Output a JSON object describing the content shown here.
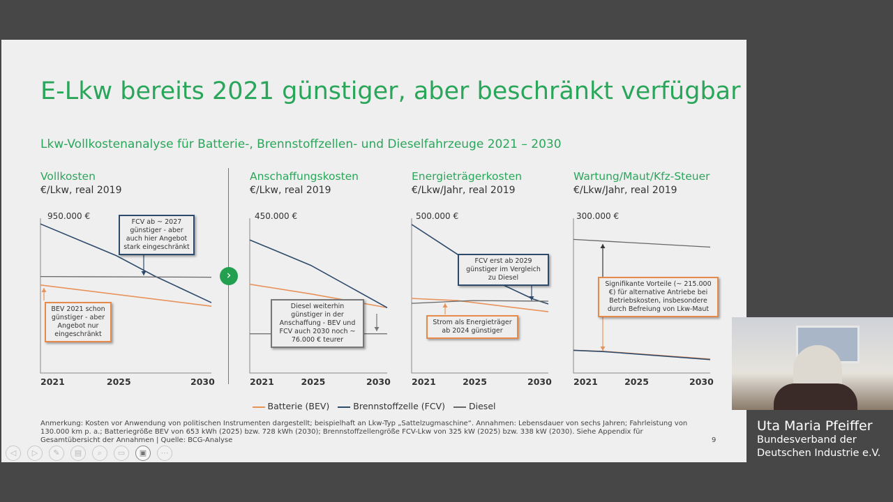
{
  "slide": {
    "title": "E-Lkw bereits 2021 günstiger, aber beschränkt verfügbar",
    "subtitle": "Lkw-Vollkostenanalyse für Batterie-, Brennstoffzellen- und Dieselfahrzeuge 2021 – 2030",
    "page_number": "9",
    "legend": [
      "Batterie (BEV)",
      "Brennstoffzelle (FCV)",
      "Diesel"
    ],
    "footnote": "Anmerkung: Kosten vor Anwendung von politischen Instrumenten dargestellt; beispielhaft an Lkw-Typ „Sattelzugmaschine“. Annahmen: Lebensdauer von sechs Jahren; Fahrleistung von 130.000 km p. a.; Batteriegröße BEV von 653 kWh (2025) bzw. 728 kWh (2030); Brennstoffzellengröße FCV-Lkw von 325 kW (2025) bzw. 338 kW (2030). Siehe Appendix für Gesamtübersicht der Annahmen  |  Quelle: BCG-Analyse",
    "notes": {
      "p1_fcv": "FCV ab ~ 2027 günstiger - aber auch hier Angebot stark eingeschränkt",
      "p1_bev": "BEV 2021 schon günstiger - aber Angebot nur eingeschränkt",
      "p2": "Diesel weiterhin günstiger in der Anschaffung - BEV und FCV auch 2030 noch ~ 76.000 € teurer",
      "p3_fcv": "FCV erst ab 2029 günstiger im Vergleich zu Diesel",
      "p3_bev": "Strom als Energieträger ab 2024 günstiger",
      "p4": "Signifikante Vorteile (~ 215.000 €) für alternative Antriebe bei Betriebskosten, insbesondere durch Befreiung von Lkw-Maut"
    }
  },
  "speaker": {
    "name": "Uta Maria Pfeiffer",
    "org_line1": "Bundesverband der",
    "org_line2": "Deutschen Industrie e.V."
  },
  "colors": {
    "bev": "#e8925a",
    "fcv": "#2e4a6b",
    "diesel": "#666666",
    "accent": "#2aa65a"
  },
  "chart_data": [
    {
      "type": "line",
      "title": "Vollkosten",
      "ylabel": "€/Lkw, real 2019",
      "ymax_label": "950.000 €",
      "ylim": [
        0,
        950000
      ],
      "x_ticks": [
        "2021",
        "2025",
        "2030"
      ],
      "series": [
        {
          "name": "Batterie (BEV)",
          "x": [
            2021,
            2030
          ],
          "values": [
            540000,
            410000
          ]
        },
        {
          "name": "Brennstoffzelle (FCV)",
          "x": [
            2021,
            2025,
            2027,
            2030
          ],
          "values": [
            915000,
            720000,
            596000,
            432000
          ]
        },
        {
          "name": "Diesel",
          "x": [
            2021,
            2030
          ],
          "values": [
            592000,
            588000
          ]
        }
      ]
    },
    {
      "type": "line",
      "title": "Anschaffungskosten",
      "ylabel": "€/Lkw, real 2019",
      "ymax_label": "450.000 €",
      "ylim": [
        0,
        450000
      ],
      "x_ticks": [
        "2021",
        "2025",
        "2030"
      ],
      "series": [
        {
          "name": "Batterie (BEV)",
          "x": [
            2021,
            2025,
            2030
          ],
          "values": [
            258000,
            230000,
            190000
          ]
        },
        {
          "name": "Brennstoffzelle (FCV)",
          "x": [
            2021,
            2025,
            2030
          ],
          "values": [
            387000,
            313000,
            190000
          ]
        },
        {
          "name": "Diesel",
          "x": [
            2021,
            2030
          ],
          "values": [
            114000,
            114000
          ]
        }
      ]
    },
    {
      "type": "line",
      "title": "Energieträgerkosten",
      "ylabel": "€/Lkw/Jahr, real 2019",
      "ymax_label": "500.000 €",
      "ylim": [
        0,
        500000
      ],
      "x_ticks": [
        "2021",
        "2025",
        "2030"
      ],
      "series": [
        {
          "name": "Batterie (BEV)",
          "x": [
            2021,
            2024,
            2030
          ],
          "values": [
            241000,
            234000,
            198000
          ]
        },
        {
          "name": "Brennstoffzelle (FCV)",
          "x": [
            2021,
            2025,
            2027,
            2029,
            2030
          ],
          "values": [
            480000,
            352000,
            285000,
            239000,
            223000
          ]
        },
        {
          "name": "Diesel",
          "x": [
            2021,
            2025,
            2030
          ],
          "values": [
            225000,
            234000,
            232000
          ]
        }
      ]
    },
    {
      "type": "line",
      "title": "Wartung/Maut/Kfz-Steuer",
      "ylabel": "€/Lkw/Jahr, real 2019",
      "ymax_label": "300.000 €",
      "ylim": [
        0,
        300000
      ],
      "x_ticks": [
        "2021",
        "2025",
        "2030"
      ],
      "series": [
        {
          "name": "Batterie (BEV)",
          "x": [
            2021,
            2023,
            2030
          ],
          "values": [
            44000,
            42000,
            27000
          ]
        },
        {
          "name": "Brennstoffzelle (FCV)",
          "x": [
            2021,
            2023,
            2030
          ],
          "values": [
            44000,
            41500,
            26000
          ]
        },
        {
          "name": "Diesel",
          "x": [
            2021,
            2030
          ],
          "values": [
            259000,
            244000
          ]
        }
      ]
    }
  ]
}
